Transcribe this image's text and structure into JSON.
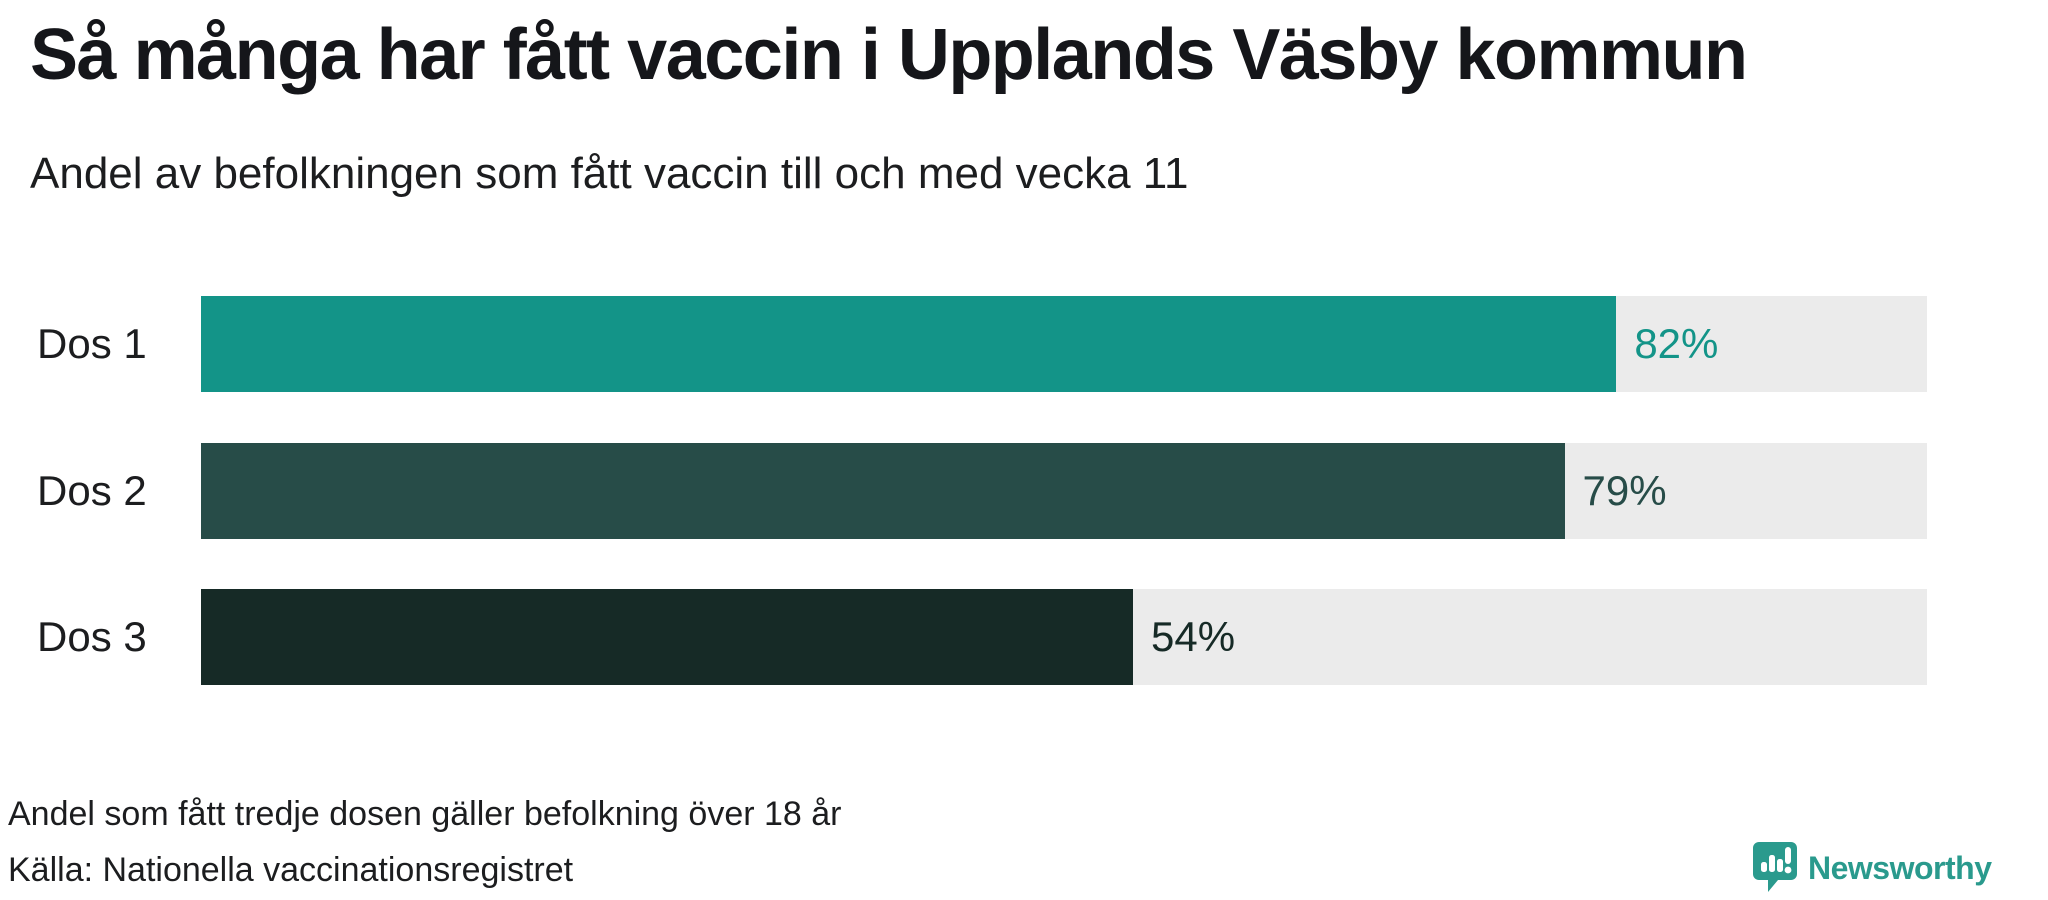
{
  "header": {
    "title": "Så många har fått vaccin i Upplands Väsby kommun",
    "subtitle": "Andel av befolkningen som fått vaccin till och med vecka 11"
  },
  "chart_data": {
    "type": "bar",
    "orientation": "horizontal",
    "title": "Så många har fått vaccin i Upplands Väsby kommun",
    "subtitle": "Andel av befolkningen som fått vaccin till och med vecka 11",
    "categories": [
      "Dos 1",
      "Dos 2",
      "Dos 3"
    ],
    "values": [
      82,
      79,
      54
    ],
    "value_labels": [
      "82%",
      "79%",
      "54%"
    ],
    "xlim": [
      0,
      100
    ],
    "bar_colors": [
      "#139488",
      "#274c48",
      "#162a26"
    ],
    "track_color": "#ebebeb",
    "grid": false,
    "legend": false,
    "note": "Andel som fått tredje dosen gäller befolkning över 18 år",
    "source": "Källa: Nationella vaccinationsregistret"
  },
  "footer": {
    "note": "Andel som fått tredje dosen gäller befolkning över 18 år",
    "source": "Källa: Nationella vaccinationsregistret"
  },
  "branding": {
    "name": "Newsworthy",
    "accent_color": "#2a9a8d"
  }
}
